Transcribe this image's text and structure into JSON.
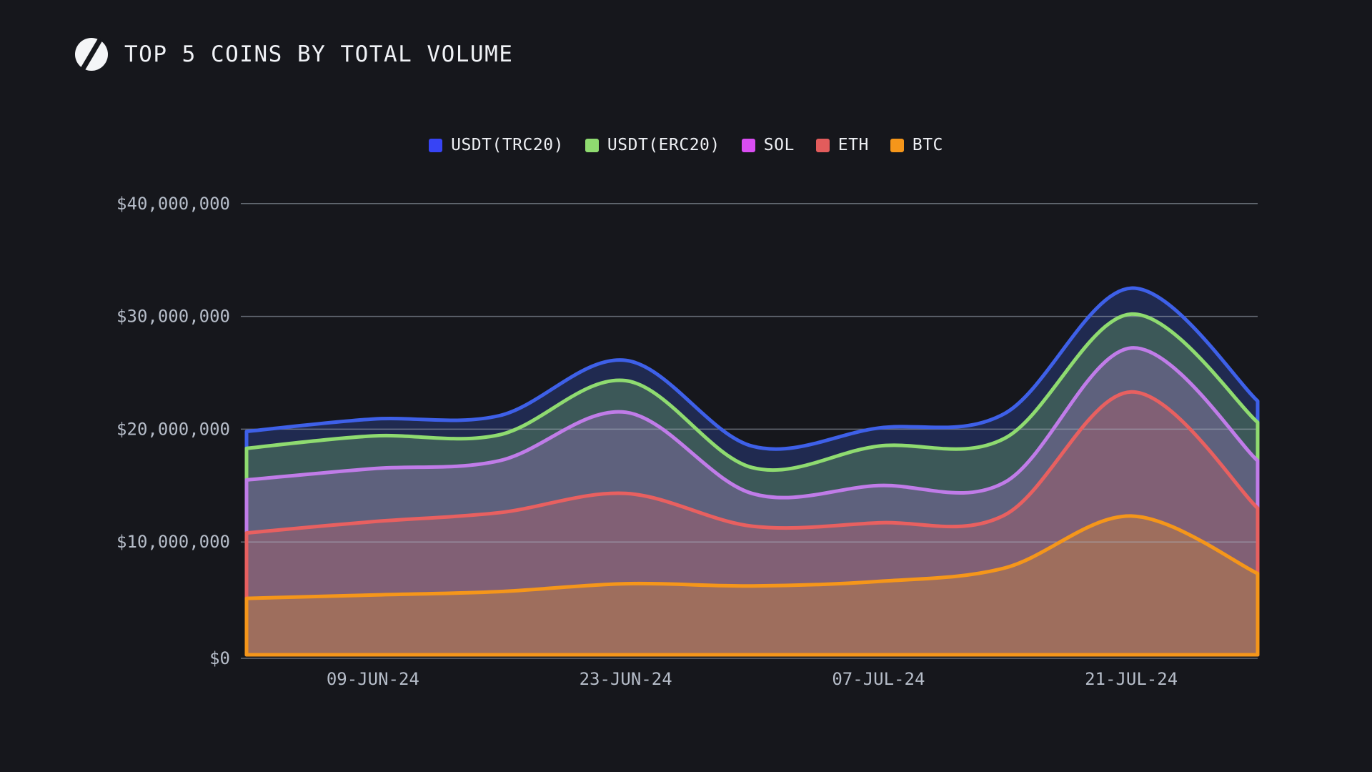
{
  "header": {
    "title": "TOP 5 COINS BY TOTAL VOLUME"
  },
  "page": {
    "background_color": "#16171c",
    "grid_color": "#aab2c0",
    "axis_label_color": "#b6bdc9",
    "title_color": "#f0f2f6"
  },
  "logo": {
    "name": "slashed-circle-logo",
    "color": "#f4f5f7"
  },
  "chart_data": {
    "type": "area",
    "stacked": true,
    "smoothing": "spline",
    "title": "TOP 5 COINS BY TOTAL VOLUME",
    "legend_position": "top-center",
    "grid": "horizontal-only",
    "x": [
      "02-JUN-24",
      "09-JUN-24",
      "16-JUN-24",
      "23-JUN-24",
      "30-JUN-24",
      "07-JUL-24",
      "14-JUL-24",
      "21-JUL-24",
      "28-JUL-24"
    ],
    "x_axis_tick_labels": [
      "09-JUN-24",
      "23-JUN-24",
      "07-JUL-24",
      "21-JUL-24"
    ],
    "x_tick_point_indexes": [
      1,
      3,
      5,
      7
    ],
    "y_axis_tick_labels": [
      "$0",
      "$10,000,000",
      "$20,000,000",
      "$30,000,000",
      "$40,000,000"
    ],
    "y_tick_values_musd": [
      0,
      10,
      20,
      30,
      40
    ],
    "ylim_usd": [
      0,
      40000000
    ],
    "values_unit": "millions of USD total volume",
    "stack_order_bottom_to_top": [
      "BTC",
      "ETH",
      "SOL",
      "USDT(ERC20)",
      "USDT(TRC20)"
    ],
    "fill_opacity": 0.26,
    "series": [
      {
        "name": "USDT(TRC20)",
        "swatch_color": "#3744f5",
        "line_color": "#3e60e8",
        "values_musd": [
          1.5,
          1.5,
          1.7,
          1.8,
          1.9,
          1.6,
          2.2,
          2.3,
          1.9
        ]
      },
      {
        "name": "USDT(ERC20)",
        "swatch_color": "#8fdb70",
        "line_color": "#8fdb70",
        "values_musd": [
          2.8,
          2.9,
          2.3,
          2.8,
          2.3,
          3.5,
          3.9,
          3.0,
          3.4
        ]
      },
      {
        "name": "SOL",
        "swatch_color": "#d94df2",
        "line_color": "#c07ce8",
        "values_musd": [
          4.7,
          4.7,
          4.6,
          7.2,
          2.9,
          3.3,
          2.9,
          3.9,
          4.2
        ]
      },
      {
        "name": "ETH",
        "swatch_color": "#e25c5c",
        "line_color": "#e86060",
        "values_musd": [
          5.8,
          6.5,
          7.0,
          8.0,
          5.3,
          5.2,
          4.7,
          11.0,
          5.8
        ]
      },
      {
        "name": "BTC",
        "swatch_color": "#f5961a",
        "line_color": "#f5961a",
        "values_musd": [
          5.0,
          5.3,
          5.6,
          6.3,
          6.1,
          6.5,
          7.7,
          12.3,
          7.2
        ]
      }
    ]
  }
}
